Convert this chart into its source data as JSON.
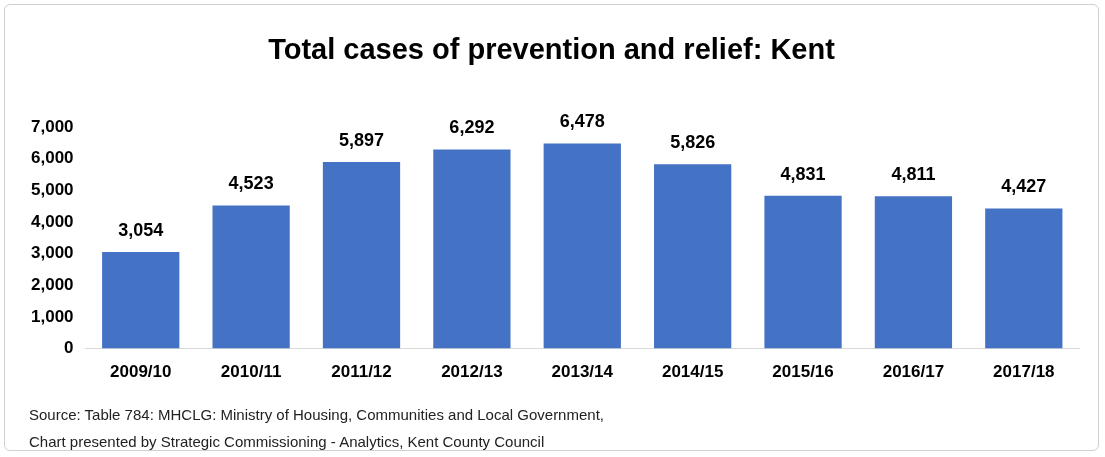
{
  "chart_data": {
    "type": "bar",
    "title": "Total cases of prevention and relief: Kent",
    "categories": [
      "2009/10",
      "2010/11",
      "2011/12",
      "2012/13",
      "2013/14",
      "2014/15",
      "2015/16",
      "2016/17",
      "2017/18"
    ],
    "values": [
      3054,
      4523,
      5897,
      6292,
      6478,
      5826,
      4831,
      4811,
      4427
    ],
    "color": "#4472c4",
    "ylim": [
      0,
      7000
    ],
    "yticks": [
      0,
      {
        "value": 1000,
        "label": "1,000"
      },
      {
        "value": 2000,
        "label": "2,000"
      },
      {
        "value": 3000,
        "label": "3,000"
      },
      {
        "value": 4000,
        "label": "4,000"
      },
      {
        "value": 5000,
        "label": "5,000"
      },
      {
        "value": 6000,
        "label": "6,000"
      },
      {
        "value": 7000,
        "label": "7,000"
      }
    ],
    "value_labels": [
      "3,054",
      "4,523",
      "5,897",
      "6,292",
      "6,478",
      "5,826",
      "4,831",
      "4,811",
      "4,427"
    ],
    "grid": false,
    "legend": false,
    "annotations": [
      "Source: Table 784: MHCLG: Ministry of Housing, Communities and Local Government,",
      "Chart presented by Strategic Commissioning - Analytics, Kent County Council"
    ]
  }
}
